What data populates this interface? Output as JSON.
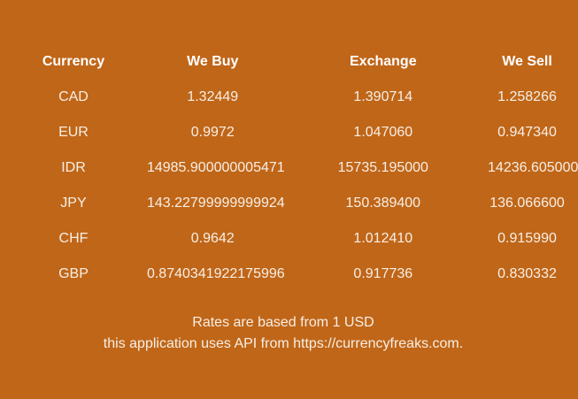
{
  "table": {
    "headers": {
      "currency": "Currency",
      "buy": "We Buy",
      "exchange": "Exchange",
      "sell": "We Sell"
    },
    "rows": [
      {
        "currency": "CAD",
        "buy": "1.32449",
        "exchange": "1.390714",
        "sell": "1.258266"
      },
      {
        "currency": "EUR",
        "buy": "0.9972",
        "exchange": "1.047060",
        "sell": "0.947340"
      },
      {
        "currency": "IDR",
        "buy": "14985.900000005471",
        "exchange": "15735.195000",
        "sell": "14236.605000"
      },
      {
        "currency": "JPY",
        "buy": "143.22799999999924",
        "exchange": "150.389400",
        "sell": "136.066600"
      },
      {
        "currency": "CHF",
        "buy": "0.9642",
        "exchange": "1.012410",
        "sell": "0.915990"
      },
      {
        "currency": "GBP",
        "buy": "0.8740341922175996",
        "exchange": "0.917736",
        "sell": "0.830332"
      }
    ]
  },
  "footer": {
    "line1": "Rates are based from 1 USD",
    "line2": "this application uses API from https://currencyfreaks.com."
  },
  "colors": {
    "background": "#c06618",
    "text": "#f7efe6"
  }
}
